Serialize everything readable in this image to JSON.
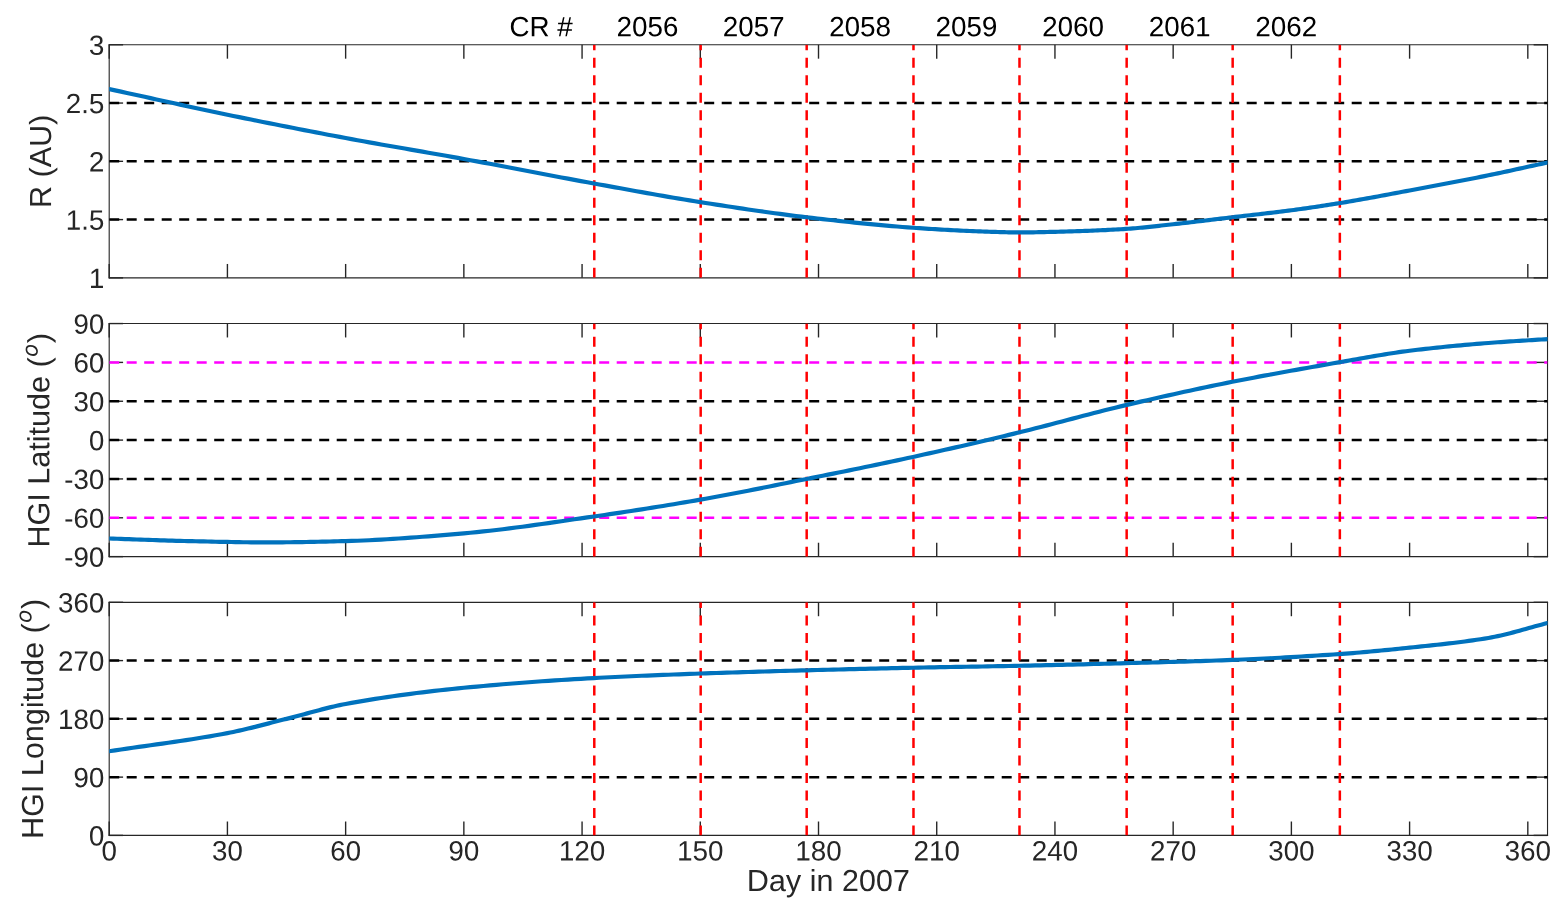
{
  "chart_data": [
    {
      "type": "line",
      "ylabel": "R (AU)",
      "tick_labels": "y",
      "grid": false,
      "xlim": [
        0,
        365
      ],
      "xticks": [
        0,
        30,
        60,
        90,
        120,
        150,
        180,
        210,
        240,
        270,
        300,
        330,
        360
      ],
      "ylim": [
        1,
        3
      ],
      "yticks": [
        1,
        1.5,
        2,
        2.5,
        3
      ],
      "x": [
        0,
        30,
        60,
        90,
        123,
        150,
        177,
        204,
        220,
        231,
        245,
        258,
        270,
        285,
        300,
        312,
        330,
        350,
        365
      ],
      "series": [
        {
          "color": "#0072bd",
          "values": [
            2.62,
            2.4,
            2.2,
            2.02,
            1.81,
            1.65,
            1.52,
            1.43,
            1.4,
            1.39,
            1.4,
            1.42,
            1.46,
            1.52,
            1.58,
            1.64,
            1.75,
            1.88,
            1.99
          ]
        }
      ],
      "ref_lines": [
        {
          "axis": "y",
          "value": 1.5,
          "color": "#000000",
          "line_style": "dashed"
        },
        {
          "axis": "y",
          "value": 2,
          "color": "#000000",
          "line_style": "dashed"
        },
        {
          "axis": "y",
          "value": 2.5,
          "color": "#000000",
          "line_style": "dashed"
        },
        {
          "axis": "x",
          "value": 123.1,
          "color": "#ff0000",
          "line_style": "dashed"
        },
        {
          "axis": "x",
          "value": 150.1,
          "color": "#ff0000",
          "line_style": "dashed"
        },
        {
          "axis": "x",
          "value": 177.0,
          "color": "#ff0000",
          "line_style": "dashed"
        },
        {
          "axis": "x",
          "value": 204.1,
          "color": "#ff0000",
          "line_style": "dashed"
        },
        {
          "axis": "x",
          "value": 231.0,
          "color": "#ff0000",
          "line_style": "dashed"
        },
        {
          "axis": "x",
          "value": 258.2,
          "color": "#ff0000",
          "line_style": "dashed"
        },
        {
          "axis": "x",
          "value": 285.1,
          "color": "#ff0000",
          "line_style": "dashed"
        },
        {
          "axis": "x",
          "value": 312.3,
          "color": "#ff0000",
          "line_style": "dashed"
        }
      ],
      "annotations": [
        "CR #",
        "2056",
        "2057",
        "2058",
        "2059",
        "2060",
        "2061",
        "2062"
      ]
    },
    {
      "type": "line",
      "ylabel": "HGI Latitude ($^{o}$)",
      "tick_labels": "y",
      "grid": false,
      "xlim": [
        0,
        365
      ],
      "xticks": [
        0,
        30,
        60,
        90,
        120,
        150,
        180,
        210,
        240,
        270,
        300,
        330,
        360
      ],
      "ylim": [
        -90,
        90
      ],
      "yticks": [
        -90,
        -60,
        -30,
        0,
        30,
        60,
        90
      ],
      "x": [
        0,
        20,
        40,
        60,
        90,
        123,
        150,
        177,
        204,
        231,
        258,
        285,
        312,
        330,
        350,
        365
      ],
      "series": [
        {
          "color": "#0072bd",
          "values": [
            -76,
            -78,
            -79,
            -78,
            -72,
            -59,
            -46,
            -30,
            -13,
            6,
            27,
            45,
            60,
            69,
            75,
            78
          ]
        }
      ],
      "ref_lines": [
        {
          "axis": "y",
          "value": 60,
          "color": "#ff00ff",
          "line_style": "dashed"
        },
        {
          "axis": "y",
          "value": 30,
          "color": "#000000",
          "line_style": "dashed"
        },
        {
          "axis": "y",
          "value": 0,
          "color": "#000000",
          "line_style": "dashed"
        },
        {
          "axis": "y",
          "value": -30,
          "color": "#000000",
          "line_style": "dashed"
        },
        {
          "axis": "y",
          "value": -60,
          "color": "#ff00ff",
          "line_style": "dashed"
        },
        {
          "axis": "x",
          "value": 123.1,
          "color": "#ff0000",
          "line_style": "dashed"
        },
        {
          "axis": "x",
          "value": 150.1,
          "color": "#ff0000",
          "line_style": "dashed"
        },
        {
          "axis": "x",
          "value": 177.0,
          "color": "#ff0000",
          "line_style": "dashed"
        },
        {
          "axis": "x",
          "value": 204.1,
          "color": "#ff0000",
          "line_style": "dashed"
        },
        {
          "axis": "x",
          "value": 231.0,
          "color": "#ff0000",
          "line_style": "dashed"
        },
        {
          "axis": "x",
          "value": 258.2,
          "color": "#ff0000",
          "line_style": "dashed"
        },
        {
          "axis": "x",
          "value": 285.1,
          "color": "#ff0000",
          "line_style": "dashed"
        },
        {
          "axis": "x",
          "value": 312.3,
          "color": "#ff0000",
          "line_style": "dashed"
        }
      ]
    },
    {
      "type": "line",
      "ylabel": "HGI Longitude ($^{o}$)",
      "xlabel": "Day in 2007",
      "grid": false,
      "xlim": [
        0,
        365
      ],
      "xticks": [
        0,
        30,
        60,
        90,
        120,
        150,
        180,
        210,
        240,
        270,
        300,
        330,
        360
      ],
      "ylim": [
        0,
        360
      ],
      "yticks": [
        0,
        90,
        180,
        270,
        360
      ],
      "x": [
        0,
        30,
        45,
        60,
        90,
        123,
        150,
        177,
        204,
        231,
        258,
        285,
        312,
        330,
        350,
        365
      ],
      "series": [
        {
          "color": "#0072bd",
          "values": [
            130,
            158,
            180,
            203,
            228,
            243,
            250,
            255,
            259,
            262,
            266,
            271,
            280,
            290,
            305,
            328
          ]
        }
      ],
      "ref_lines": [
        {
          "axis": "y",
          "value": 90,
          "color": "#000000",
          "line_style": "dashed"
        },
        {
          "axis": "y",
          "value": 180,
          "color": "#000000",
          "line_style": "dashed"
        },
        {
          "axis": "y",
          "value": 270,
          "color": "#000000",
          "line_style": "dashed"
        },
        {
          "axis": "x",
          "value": 123.1,
          "color": "#ff0000",
          "line_style": "dashed"
        },
        {
          "axis": "x",
          "value": 150.1,
          "color": "#ff0000",
          "line_style": "dashed"
        },
        {
          "axis": "x",
          "value": 177.0,
          "color": "#ff0000",
          "line_style": "dashed"
        },
        {
          "axis": "x",
          "value": 204.1,
          "color": "#ff0000",
          "line_style": "dashed"
        },
        {
          "axis": "x",
          "value": 231.0,
          "color": "#ff0000",
          "line_style": "dashed"
        },
        {
          "axis": "x",
          "value": 258.2,
          "color": "#ff0000",
          "line_style": "dashed"
        },
        {
          "axis": "x",
          "value": 285.1,
          "color": "#ff0000",
          "line_style": "dashed"
        },
        {
          "axis": "x",
          "value": 312.3,
          "color": "#ff0000",
          "line_style": "dashed"
        }
      ]
    }
  ]
}
